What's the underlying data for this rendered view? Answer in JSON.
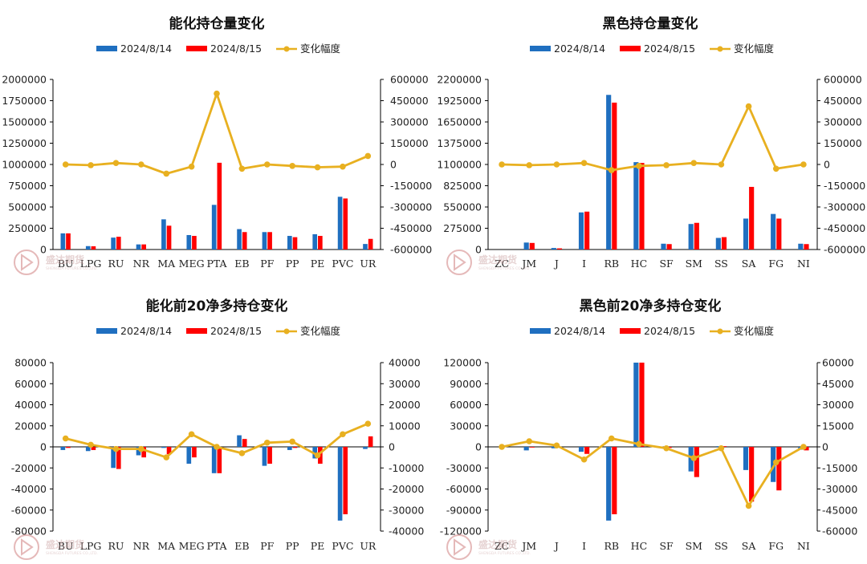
{
  "legend": {
    "series1": "2024/8/14",
    "series2": "2024/8/15",
    "change": "变化幅度"
  },
  "colors": {
    "series1": "#1f6fc0",
    "series2": "#ff0000",
    "change": "#e8b020"
  },
  "watermark": {
    "text": "盛达期货",
    "sub": "SHENGDA FUTURES CO.,LTD."
  },
  "chart_data": [
    {
      "type": "bar",
      "title": "能化持仓量变化",
      "categories": [
        "BU",
        "LPG",
        "RU",
        "NR",
        "MA",
        "MEG",
        "PTA",
        "EB",
        "PF",
        "PP",
        "PE",
        "PVC",
        "UR"
      ],
      "series": [
        {
          "name": "2024/8/14",
          "values": [
            190000,
            40000,
            140000,
            60000,
            355000,
            170000,
            525000,
            240000,
            205000,
            160000,
            180000,
            620000,
            65000
          ]
        },
        {
          "name": "2024/8/15",
          "values": [
            190000,
            38000,
            150000,
            60000,
            280000,
            160000,
            1020000,
            205000,
            205000,
            145000,
            160000,
            600000,
            125000
          ]
        }
      ],
      "line": {
        "name": "变化幅度",
        "values": [
          0,
          -5000,
          10000,
          0,
          -65000,
          -15000,
          500000,
          -30000,
          0,
          -10000,
          -20000,
          -15000,
          60000
        ]
      },
      "ylim": [
        0,
        2000000
      ],
      "yticks": [
        0,
        250000,
        500000,
        750000,
        1000000,
        1250000,
        1500000,
        1750000,
        2000000
      ],
      "ytick_labels": [
        "0",
        "250000",
        "500000",
        "750000",
        "1000000",
        "1250000",
        "1500000",
        "1750000",
        "2000000"
      ],
      "y2lim": [
        -600000,
        600000
      ],
      "y2ticks": [
        -600000,
        -450000,
        -300000,
        -150000,
        0,
        150000,
        300000,
        450000,
        600000
      ],
      "y2tick_labels": [
        "-600000",
        "-450000",
        "-300000",
        "-150000",
        "0",
        "150000",
        "300000",
        "450000",
        "600000"
      ],
      "legend_position": "top"
    },
    {
      "type": "bar",
      "title": "黑色持仓量变化",
      "categories": [
        "ZC",
        "JM",
        "J",
        "I",
        "RB",
        "HC",
        "SF",
        "SM",
        "SS",
        "SA",
        "FG",
        "NI"
      ],
      "series": [
        {
          "name": "2024/8/14",
          "values": [
            0,
            90000,
            20000,
            480000,
            2000000,
            1130000,
            75000,
            330000,
            150000,
            400000,
            460000,
            75000
          ]
        },
        {
          "name": "2024/8/15",
          "values": [
            0,
            85000,
            15000,
            490000,
            1900000,
            1120000,
            70000,
            345000,
            160000,
            810000,
            400000,
            70000
          ]
        }
      ],
      "line": {
        "name": "变化幅度",
        "values": [
          0,
          -5000,
          0,
          10000,
          -40000,
          -10000,
          -5000,
          10000,
          0,
          410000,
          -30000,
          0
        ]
      },
      "ylim": [
        0,
        2200000
      ],
      "yticks": [
        0,
        275000,
        550000,
        825000,
        1100000,
        1375000,
        1650000,
        1925000,
        2200000
      ],
      "ytick_labels": [
        "0",
        "275000",
        "550000",
        "825000",
        "1100000",
        "1375000",
        "1650000",
        "1925000",
        "2200000"
      ],
      "y2lim": [
        -600000,
        600000
      ],
      "y2ticks": [
        -600000,
        -450000,
        -300000,
        -150000,
        0,
        150000,
        300000,
        450000,
        600000
      ],
      "y2tick_labels": [
        "-600000",
        "-450000",
        "-300000",
        "-150000",
        "0",
        "150000",
        "300000",
        "450000",
        "600000"
      ],
      "legend_position": "top"
    },
    {
      "type": "bar",
      "title": "能化前20净多持仓变化",
      "categories": [
        "BU",
        "LPG",
        "RU",
        "NR",
        "MA",
        "MEG",
        "PTA",
        "EB",
        "PF",
        "PP",
        "PE",
        "PVC",
        "UR"
      ],
      "series": [
        {
          "name": "2024/8/14",
          "values": [
            -3000,
            -4000,
            -20000,
            -8000,
            -1000,
            -16000,
            -25000,
            11000,
            -18000,
            -3000,
            -11000,
            -70000,
            -2000
          ]
        },
        {
          "name": "2024/8/15",
          "values": [
            -1000,
            -3000,
            -21000,
            -10000,
            -7000,
            -10000,
            -25000,
            7500,
            -16000,
            -1000,
            -16000,
            -64000,
            10000
          ]
        }
      ],
      "line": {
        "name": "变化幅度",
        "values": [
          4000,
          1000,
          -1000,
          -1000,
          -5000,
          6000,
          0,
          -3000,
          2000,
          2500,
          -4000,
          6000,
          11000
        ]
      },
      "ylim": [
        -80000,
        80000
      ],
      "yticks": [
        -80000,
        -60000,
        -40000,
        -20000,
        0,
        20000,
        40000,
        60000,
        80000
      ],
      "ytick_labels": [
        "-80000",
        "-60000",
        "-40000",
        "-20000",
        "0",
        "20000",
        "40000",
        "60000",
        "80000"
      ],
      "y2lim": [
        -40000,
        40000
      ],
      "y2ticks": [
        -40000,
        -30000,
        -20000,
        -10000,
        0,
        10000,
        20000,
        30000,
        40000
      ],
      "y2tick_labels": [
        "-40000",
        "-30000",
        "-20000",
        "-10000",
        "0",
        "10000",
        "20000",
        "30000",
        "40000"
      ],
      "legend_position": "top"
    },
    {
      "type": "bar",
      "title": "黑色前20净多持仓变化",
      "categories": [
        "ZC",
        "JM",
        "J",
        "I",
        "RB",
        "HC",
        "SF",
        "SM",
        "SS",
        "SA",
        "FG",
        "NI"
      ],
      "series": [
        {
          "name": "2024/8/14",
          "values": [
            0,
            -5000,
            -2000,
            -7000,
            -105000,
            120000,
            -1000,
            -35000,
            1000,
            -33000,
            -50000,
            -4000
          ]
        },
        {
          "name": "2024/8/15",
          "values": [
            0,
            -1000,
            -1000,
            -10000,
            -96000,
            120000,
            -1500,
            -43000,
            1000,
            -78000,
            -62000,
            -5000
          ]
        }
      ],
      "line": {
        "name": "变化幅度",
        "values": [
          0,
          4000,
          1000,
          -9000,
          6000,
          2000,
          -1000,
          -8000,
          -1000,
          -42000,
          -11000,
          0
        ]
      },
      "ylim": [
        -120000,
        120000
      ],
      "yticks": [
        -120000,
        -90000,
        -60000,
        -30000,
        0,
        30000,
        60000,
        90000,
        120000
      ],
      "ytick_labels": [
        "-120000",
        "-90000",
        "-60000",
        "-30000",
        "0",
        "30000",
        "60000",
        "90000",
        "120000"
      ],
      "y2lim": [
        -60000,
        60000
      ],
      "y2ticks": [
        -60000,
        -45000,
        -30000,
        -15000,
        0,
        15000,
        30000,
        45000,
        60000
      ],
      "y2tick_labels": [
        "-60000",
        "-45000",
        "-30000",
        "-15000",
        "0",
        "15000",
        "30000",
        "45000",
        "60000"
      ],
      "legend_position": "top"
    }
  ]
}
